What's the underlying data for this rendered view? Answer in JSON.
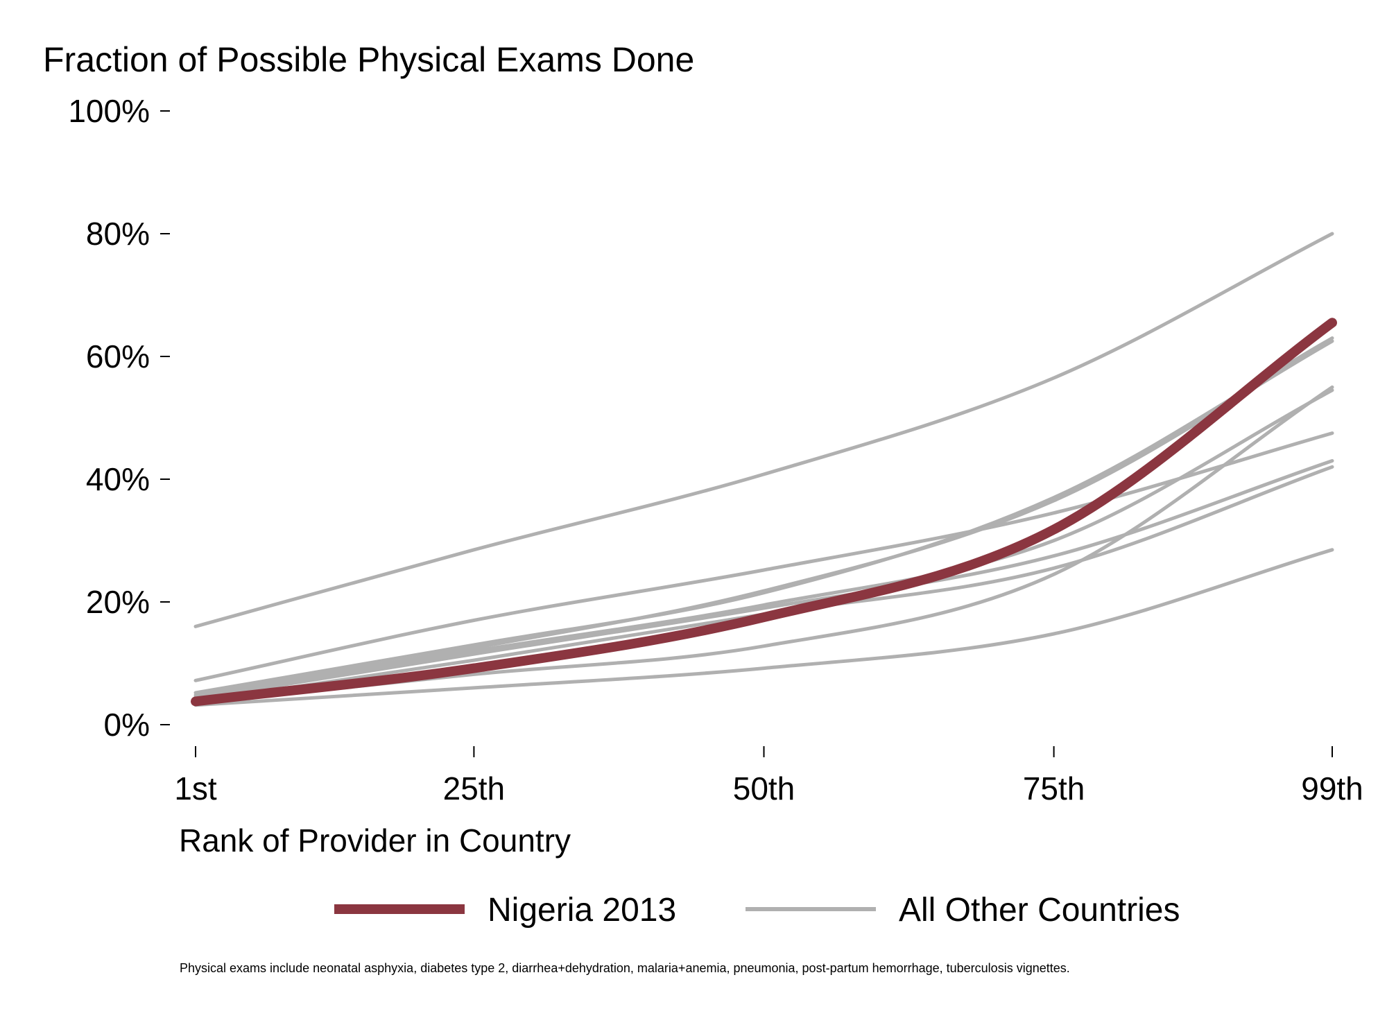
{
  "chart_data": {
    "type": "line",
    "title": "Fraction of Possible Physical Exams Done",
    "xlabel": "Rank of Provider in Country",
    "ylabel": "",
    "x_ticks": [
      {
        "value": 1,
        "label": "1st"
      },
      {
        "value": 25,
        "label": "25th"
      },
      {
        "value": 50,
        "label": "50th"
      },
      {
        "value": 75,
        "label": "75th"
      },
      {
        "value": 99,
        "label": "99th"
      }
    ],
    "y_ticks": [
      {
        "value": 0,
        "label": "0%"
      },
      {
        "value": 20,
        "label": "20%"
      },
      {
        "value": 40,
        "label": "40%"
      },
      {
        "value": 60,
        "label": "60%"
      },
      {
        "value": 80,
        "label": "80%"
      },
      {
        "value": 100,
        "label": "100%"
      }
    ],
    "xlim": [
      1,
      99
    ],
    "ylim": [
      0,
      100
    ],
    "grid": false,
    "legend_position": "bottom",
    "legend": [
      {
        "label": "Nigeria 2013",
        "color": "#8b3640"
      },
      {
        "label": "All Other Countries",
        "color": "#b0b0b0"
      }
    ],
    "highlight_color": "#8b3640",
    "other_color": "#b0b0b0",
    "series": [
      {
        "name": "Nigeria 2013",
        "x": [
          1,
          25,
          50,
          75,
          99
        ],
        "values": [
          3.8,
          9.2,
          17.5,
          31.8,
          65.5
        ],
        "highlight": true
      },
      {
        "x": [
          1,
          25,
          50,
          75,
          99
        ],
        "values": [
          16.0,
          28.5,
          40.8,
          56.5,
          80.0
        ]
      },
      {
        "x": [
          1,
          25,
          50,
          75,
          99
        ],
        "values": [
          7.2,
          17.0,
          25.2,
          34.5,
          47.5
        ]
      },
      {
        "x": [
          1,
          25,
          50,
          75,
          99
        ],
        "values": [
          5.2,
          13.0,
          21.5,
          37.0,
          63.0
        ]
      },
      {
        "x": [
          1,
          25,
          50,
          75,
          99
        ],
        "values": [
          4.8,
          12.5,
          21.8,
          36.5,
          62.5
        ]
      },
      {
        "x": [
          1,
          25,
          50,
          75,
          99
        ],
        "values": [
          4.5,
          12.0,
          19.5,
          30.0,
          54.5
        ]
      },
      {
        "x": [
          1,
          25,
          50,
          75,
          99
        ],
        "values": [
          4.2,
          11.5,
          19.0,
          27.5,
          43.0
        ]
      },
      {
        "x": [
          1,
          25,
          50,
          75,
          99
        ],
        "values": [
          3.8,
          10.5,
          18.0,
          25.5,
          42.0
        ]
      },
      {
        "x": [
          1,
          25,
          50,
          75,
          99
        ],
        "values": [
          3.5,
          8.2,
          12.8,
          24.5,
          55.0
        ]
      },
      {
        "x": [
          1,
          25,
          50,
          75,
          99
        ],
        "values": [
          3.2,
          6.0,
          9.2,
          14.8,
          28.5
        ]
      }
    ]
  },
  "footnote": "Physical exams include neonatal asphyxia, diabetes type 2, diarrhea+dehydration, malaria+anemia, pneumonia, post-partum hemorrhage, tuberculosis vignettes."
}
